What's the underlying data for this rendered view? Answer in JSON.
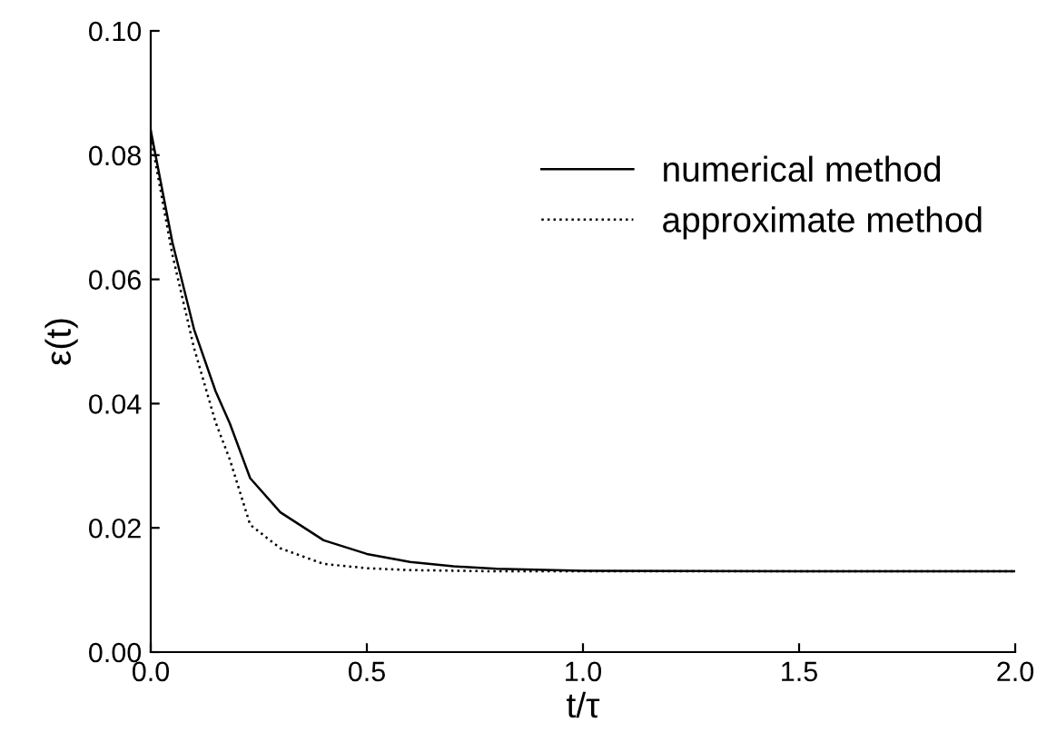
{
  "chart_data": {
    "type": "line",
    "xlabel": "t/τ",
    "ylabel": "ε(t)",
    "xlim": [
      0,
      2
    ],
    "ylim": [
      0,
      0.1
    ],
    "xticks": [
      {
        "value": 0,
        "label": "0.0"
      },
      0.5,
      {
        "value": 1,
        "label": "1.0"
      },
      1.5,
      {
        "value": 2,
        "label": "2.0"
      }
    ],
    "yticks": [
      {
        "value": 0,
        "label": "0.00"
      },
      0.02,
      0.04,
      0.06,
      0.08,
      {
        "value": 0.1,
        "label": "0.10"
      }
    ],
    "grid": false,
    "legend": "top right",
    "x": [
      0,
      0.05,
      0.1,
      0.15,
      0.183,
      0.23,
      0.3,
      0.4,
      0.5,
      0.6,
      0.7,
      0.8,
      1.0,
      1.5,
      2.0
    ],
    "series": [
      {
        "name": "numerical method",
        "color": "#000000",
        "line_style": "solid",
        "values": [
          0.084,
          0.066,
          0.052,
          0.042,
          0.0368,
          0.028,
          0.0225,
          0.018,
          0.0158,
          0.0145,
          0.0138,
          0.0134,
          0.0131,
          0.013,
          0.013
        ]
      },
      {
        "name": "approximate method",
        "color": "#000000",
        "line_style": "dotted",
        "values": [
          0.083,
          0.064,
          0.049,
          0.037,
          0.031,
          0.0205,
          0.0167,
          0.0142,
          0.0135,
          0.0132,
          0.0131,
          0.013,
          0.013,
          0.013,
          0.013
        ]
      }
    ]
  }
}
